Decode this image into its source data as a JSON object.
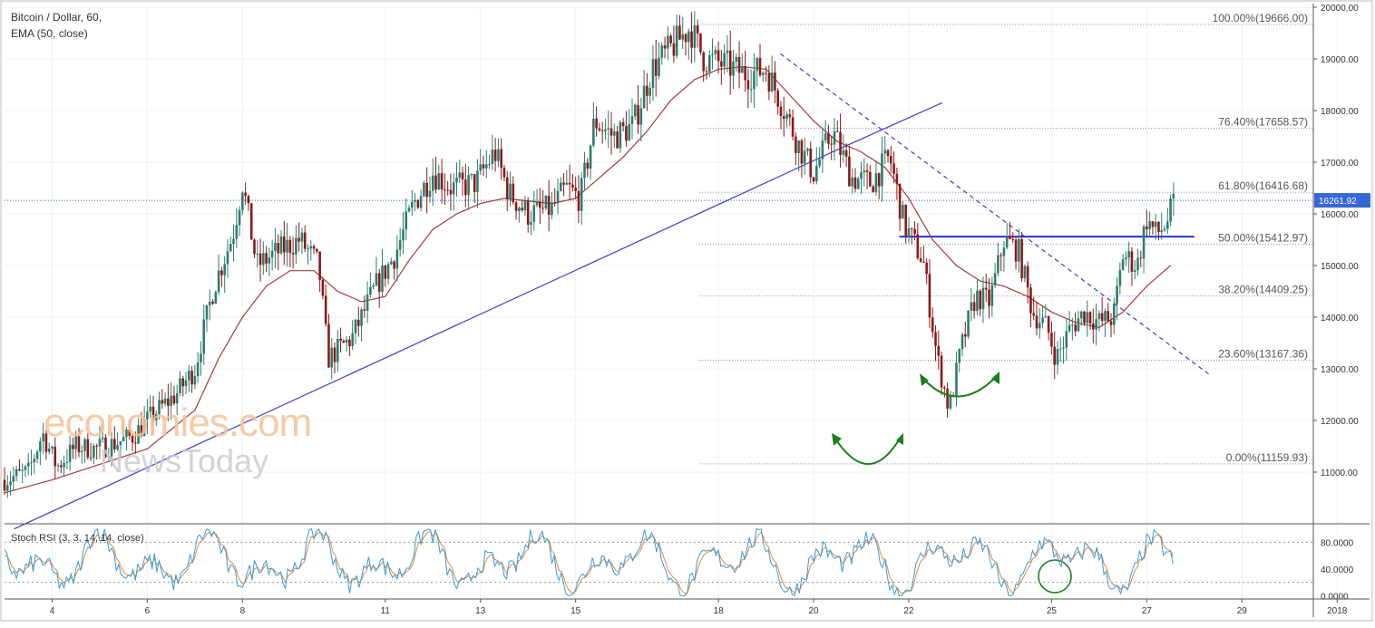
{
  "header": {
    "symbol": "Bitcoin / Dollar, 60,",
    "indicator": "EMA (50, close)"
  },
  "stoch_label": "Stoch RSI (3, 3, 14, 14, close)",
  "watermark": {
    "line1": "economies.com",
    "line2": "NewsToday"
  },
  "colors": {
    "up": "#2e7d6e",
    "down": "#8b1a1a",
    "ema": "#a33a3a",
    "trend": "#3b3bd0",
    "fib": "#7d8bd6",
    "neckline": "#2333d9",
    "annot": "#1e7d1e",
    "stoch_k": "#3a9ad9",
    "stoch_d": "#e08a3a",
    "price_tag": "#3568d4"
  },
  "chart_data": {
    "type": "candlestick",
    "title": "Bitcoin / Dollar, 60,",
    "ylim": [
      10000,
      20000
    ],
    "ytick_values": [
      11000,
      12000,
      13000,
      14000,
      15000,
      16000,
      17000,
      18000,
      19000,
      20000
    ],
    "ytick_labels": [
      "11000.00",
      "12000.00",
      "13000.00",
      "14000.00",
      "15000.00",
      "16000.00",
      "17000.00",
      "18000.00",
      "19000.00",
      "20000.00"
    ],
    "x_domain": [
      3,
      30.5
    ],
    "x_ticks": [
      {
        "day": 4,
        "label": "4"
      },
      {
        "day": 6,
        "label": "6"
      },
      {
        "day": 8,
        "label": "8"
      },
      {
        "day": 11,
        "label": "11"
      },
      {
        "day": 13,
        "label": "13"
      },
      {
        "day": 15,
        "label": "15"
      },
      {
        "day": 18,
        "label": "18"
      },
      {
        "day": 20,
        "label": "20"
      },
      {
        "day": 22,
        "label": "22"
      },
      {
        "day": 25,
        "label": "25"
      },
      {
        "day": 27,
        "label": "27"
      },
      {
        "day": 29,
        "label": "29"
      },
      {
        "day": 31,
        "label": "2018"
      }
    ],
    "current_price": "16261.92",
    "price_path": [
      [
        3.0,
        10850
      ],
      [
        3.5,
        11000
      ],
      [
        3.8,
        11750
      ],
      [
        4.1,
        11100
      ],
      [
        4.5,
        11500
      ],
      [
        4.9,
        11450
      ],
      [
        5.3,
        11550
      ],
      [
        5.7,
        11700
      ],
      [
        6.1,
        12100
      ],
      [
        6.6,
        12500
      ],
      [
        7.0,
        13000
      ],
      [
        7.4,
        14600
      ],
      [
        7.8,
        15600
      ],
      [
        8.0,
        16600
      ],
      [
        8.3,
        15000
      ],
      [
        8.8,
        15300
      ],
      [
        9.2,
        15500
      ],
      [
        9.6,
        15000
      ],
      [
        9.8,
        13200
      ],
      [
        10.3,
        13600
      ],
      [
        10.8,
        14600
      ],
      [
        11.2,
        15200
      ],
      [
        11.6,
        16200
      ],
      [
        12.0,
        16800
      ],
      [
        12.4,
        16500
      ],
      [
        12.9,
        16600
      ],
      [
        13.3,
        17200
      ],
      [
        13.6,
        16400
      ],
      [
        14.0,
        16000
      ],
      [
        14.5,
        16100
      ],
      [
        14.8,
        16500
      ],
      [
        15.1,
        16300
      ],
      [
        15.4,
        17800
      ],
      [
        15.8,
        17500
      ],
      [
        16.2,
        17700
      ],
      [
        16.6,
        18800
      ],
      [
        17.0,
        19200
      ],
      [
        17.4,
        19600
      ],
      [
        17.7,
        19000
      ],
      [
        18.1,
        18900
      ],
      [
        18.6,
        18700
      ],
      [
        19.0,
        18800
      ],
      [
        19.3,
        18200
      ],
      [
        19.7,
        17300
      ],
      [
        20.0,
        16800
      ],
      [
        20.4,
        17600
      ],
      [
        20.8,
        16700
      ],
      [
        21.2,
        16600
      ],
      [
        21.6,
        17100
      ],
      [
        21.9,
        15800
      ],
      [
        22.3,
        15100
      ],
      [
        22.6,
        13200
      ],
      [
        22.85,
        12200
      ],
      [
        23.1,
        13400
      ],
      [
        23.4,
        14400
      ],
      [
        23.7,
        14300
      ],
      [
        24.0,
        15500
      ],
      [
        24.3,
        15300
      ],
      [
        24.6,
        14100
      ],
      [
        24.9,
        13800
      ],
      [
        25.1,
        13200
      ],
      [
        25.4,
        13800
      ],
      [
        25.7,
        14100
      ],
      [
        26.0,
        13900
      ],
      [
        26.3,
        14000
      ],
      [
        26.5,
        15200
      ],
      [
        26.8,
        15000
      ],
      [
        27.0,
        15900
      ],
      [
        27.2,
        15600
      ],
      [
        27.4,
        15800
      ],
      [
        27.6,
        16262
      ]
    ],
    "ema_path": [
      [
        3.0,
        10600
      ],
      [
        4.0,
        10850
      ],
      [
        5.0,
        11150
      ],
      [
        6.0,
        11450
      ],
      [
        7.0,
        12200
      ],
      [
        7.5,
        13200
      ],
      [
        8.0,
        14000
      ],
      [
        8.5,
        14600
      ],
      [
        9.0,
        14900
      ],
      [
        9.5,
        14900
      ],
      [
        10.0,
        14500
      ],
      [
        10.5,
        14300
      ],
      [
        11.0,
        14400
      ],
      [
        11.5,
        15100
      ],
      [
        12.0,
        15700
      ],
      [
        12.5,
        16000
      ],
      [
        13.0,
        16200
      ],
      [
        13.5,
        16300
      ],
      [
        14.0,
        16250
      ],
      [
        14.5,
        16200
      ],
      [
        15.0,
        16300
      ],
      [
        15.5,
        16700
      ],
      [
        16.0,
        17100
      ],
      [
        16.5,
        17600
      ],
      [
        17.0,
        18200
      ],
      [
        17.5,
        18600
      ],
      [
        18.0,
        18800
      ],
      [
        18.5,
        18850
      ],
      [
        19.0,
        18800
      ],
      [
        19.5,
        18300
      ],
      [
        20.0,
        17800
      ],
      [
        20.5,
        17400
      ],
      [
        21.0,
        17200
      ],
      [
        21.5,
        16900
      ],
      [
        22.0,
        16300
      ],
      [
        22.5,
        15500
      ],
      [
        23.0,
        15000
      ],
      [
        23.5,
        14700
      ],
      [
        24.0,
        14600
      ],
      [
        24.5,
        14400
      ],
      [
        25.0,
        14100
      ],
      [
        25.5,
        13900
      ],
      [
        26.0,
        13800
      ],
      [
        26.5,
        14100
      ],
      [
        27.0,
        14600
      ],
      [
        27.5,
        15000
      ]
    ],
    "trendline": [
      [
        3.2,
        9900
      ],
      [
        20.4,
        17200
      ],
      [
        22.7,
        18150
      ]
    ],
    "downtrend": [
      [
        19.3,
        19100
      ],
      [
        28.3,
        12900
      ]
    ],
    "neckline": {
      "y": 15560,
      "x": [
        21.8,
        28.0
      ]
    },
    "fib_levels": [
      {
        "label": "100.00%(19666.00)",
        "value": 19666
      },
      {
        "label": "76.40%(17658.57)",
        "value": 17658.57
      },
      {
        "label": "61.80%(16416.68)",
        "value": 16416.68
      },
      {
        "label": "50.00%(15412.97)",
        "value": 15412.97
      },
      {
        "label": "38.20%(14409.25)",
        "value": 14409.25
      },
      {
        "label": "23.60%(13167.36)",
        "value": 13167.36
      },
      {
        "label": "0.00%(11159.93)",
        "value": 11159.93
      }
    ],
    "fib_x_range": [
      17.6,
      30.5
    ],
    "stoch": {
      "ylim": [
        -5,
        105
      ],
      "levels": [
        80,
        20
      ],
      "ytick_values": [
        80,
        40,
        0
      ],
      "ytick_labels": [
        "80.0000",
        "40.0000",
        "0.0000"
      ]
    }
  }
}
